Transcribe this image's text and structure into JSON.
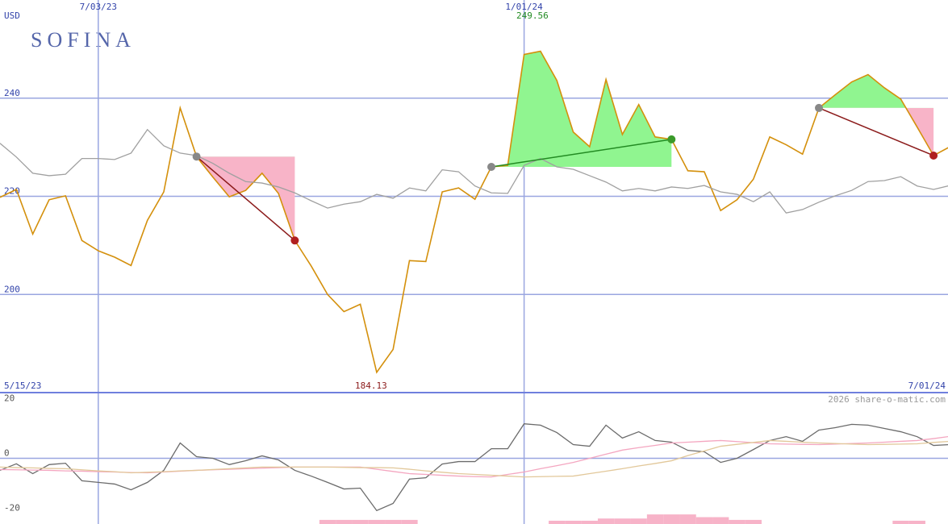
{
  "chart_data": [
    {
      "type": "line",
      "title": "SOFINA",
      "unit": "USD",
      "categories": [
        null,
        null,
        null,
        null,
        null,
        null,
        "7/03/23",
        null,
        null,
        null,
        null,
        null,
        null,
        null,
        null,
        null,
        null,
        null,
        null,
        null,
        null,
        null,
        null,
        null,
        null,
        null,
        null,
        null,
        null,
        null,
        null,
        null,
        "1/01/24",
        null,
        null,
        null,
        null,
        null,
        null,
        null,
        null,
        null,
        null,
        null,
        null,
        null,
        null,
        null,
        null,
        null,
        null,
        null,
        null,
        null,
        null,
        null,
        null,
        null,
        null
      ],
      "date_range": [
        "5/15/23",
        "7/01/24"
      ],
      "ylim": [
        180,
        260
      ],
      "yticks": [
        200,
        220,
        240
      ],
      "grid": true,
      "series": [
        {
          "color": "#d4900c",
          "values": [
            219.8,
            221.4,
            212.3,
            219.3,
            220.1,
            211.0,
            208.9,
            207.6,
            205.9,
            215.1,
            220.9,
            238.0,
            228.1,
            223.9,
            219.9,
            221.2,
            224.7,
            220.6,
            211.0,
            205.8,
            200.0,
            196.5,
            198.0,
            184.13,
            188.8,
            206.9,
            206.7,
            220.9,
            221.7,
            219.4,
            226.0,
            226.3,
            248.9,
            249.56,
            243.6,
            233.1,
            230.1,
            243.8,
            232.6,
            238.7,
            232.1,
            231.6,
            225.2,
            225.0,
            217.1,
            219.3,
            223.5,
            232.1,
            230.5,
            228.6,
            238.0,
            240.7,
            243.3,
            244.8,
            242.1,
            239.8,
            234.1,
            228.3,
            230.1
          ]
        },
        {
          "color": "#a0a0a0",
          "values": [
            230.8,
            228.0,
            224.7,
            224.2,
            224.5,
            227.7,
            227.7,
            227.5,
            228.8,
            233.6,
            230.3,
            228.8,
            228.3,
            226.7,
            224.7,
            223.0,
            222.7,
            221.9,
            220.7,
            219.1,
            217.6,
            218.4,
            218.9,
            220.4,
            219.6,
            221.7,
            221.1,
            225.4,
            225.0,
            222.1,
            220.7,
            220.6,
            226.3,
            227.7,
            226.0,
            225.5,
            224.2,
            222.9,
            221.1,
            221.6,
            221.1,
            221.9,
            221.6,
            222.2,
            220.9,
            220.4,
            218.9,
            220.9,
            216.6,
            217.3,
            218.8,
            220.1,
            221.2,
            223.0,
            223.2,
            224.0,
            222.1,
            221.4,
            222.2
          ]
        }
      ],
      "trades": [
        {
          "start": 12,
          "end": 18
        },
        {
          "start": 30,
          "end": 41
        },
        {
          "start": 50,
          "end": 57
        }
      ],
      "high_color": "#228b22",
      "low_color": "#8b1a1a"
    },
    {
      "type": "line",
      "watermark": "2026 share-o-matic.com",
      "ylim": [
        -24,
        24
      ],
      "yticks": [
        20,
        0,
        -20
      ],
      "series": [
        {
          "color": "#6b6b6b",
          "values": [
            -4.4,
            -2,
            -5.6,
            -2.3,
            -1.8,
            -8.2,
            -8.8,
            -9.4,
            -11.5,
            -8.8,
            -4.4,
            5.6,
            0.6,
            0,
            -2.3,
            -0.9,
            0.9,
            -0.6,
            -4.4,
            -6.5,
            -8.8,
            -11.2,
            -10.9,
            -19.1,
            -16.5,
            -7.6,
            -7.1,
            -2.1,
            -1.2,
            -1.2,
            3.5,
            3.5,
            12.6,
            12.1,
            9.4,
            5.0,
            4.4,
            12.1,
            7.4,
            9.7,
            6.5,
            5.9,
            2.9,
            2.4,
            -1.5,
            0,
            3.2,
            6.5,
            7.9,
            6.2,
            10.3,
            11.2,
            12.4,
            12.1,
            10.9,
            9.7,
            7.9,
            4.7,
            5.0
          ]
        },
        {
          "color": "#f4a6c0",
          "values": [
            -4.1,
            -4.2,
            -4.3,
            -4.4,
            -4.6,
            -4.7,
            -4.9,
            -5.0,
            -5.2,
            -5.3,
            -5.0,
            -4.7,
            -4.4,
            -4.2,
            -4.0,
            -3.8,
            -3.6,
            -3.4,
            -3.2,
            -3.2,
            -3.2,
            -3.2,
            -3.2,
            -4.0,
            -4.8,
            -5.6,
            -5.9,
            -6.2,
            -6.5,
            -6.7,
            -6.8,
            -5.9,
            -5.0,
            -3.8,
            -2.7,
            -1.5,
            0,
            1.5,
            3.0,
            3.9,
            4.7,
            5.6,
            5.9,
            6.2,
            6.5,
            6.1,
            5.7,
            5.3,
            5.2,
            5.1,
            5.0,
            5.2,
            5.4,
            5.6,
            5.9,
            6.2,
            6.5,
            7.2,
            8.0
          ]
        },
        {
          "color": "#e2c89a",
          "values": [
            -3.2,
            -3.4,
            -3.5,
            -3.7,
            -3.8,
            -4.2,
            -4.6,
            -4.9,
            -5.3,
            -5.1,
            -4.9,
            -4.6,
            -4.4,
            -4.1,
            -3.8,
            -3.5,
            -3.2,
            -3.2,
            -3.2,
            -3.2,
            -3.2,
            -3.3,
            -3.4,
            -3.4,
            -3.5,
            -4.0,
            -4.6,
            -5.1,
            -5.6,
            -5.9,
            -6.2,
            -6.5,
            -6.8,
            -6.7,
            -6.6,
            -6.5,
            -5.6,
            -4.7,
            -3.8,
            -2.8,
            -1.9,
            -0.9,
            1.0,
            2.7,
            4.4,
            5.1,
            5.8,
            6.5,
            6.2,
            5.9,
            5.6,
            5.4,
            5.2,
            5.0,
            5.1,
            5.2,
            5.3,
            5.8,
            6.2
          ]
        }
      ],
      "histogram": {
        "color": "#f7b3c8",
        "values": [
          0,
          0,
          0,
          0,
          0,
          0,
          0,
          0,
          0,
          0,
          0,
          0,
          0,
          0,
          0,
          0,
          0,
          0,
          0,
          0,
          1.5,
          1.5,
          1.5,
          1.5,
          1.5,
          1.5,
          0,
          0,
          0,
          0,
          0,
          0,
          0,
          0,
          1.2,
          1.2,
          1.2,
          2.0,
          2.0,
          2.0,
          3.5,
          3.5,
          3.5,
          2.5,
          2.5,
          1.5,
          1.5,
          0,
          0,
          0,
          0,
          0,
          0,
          0,
          0,
          1.2,
          1.2,
          0,
          0
        ]
      }
    }
  ]
}
